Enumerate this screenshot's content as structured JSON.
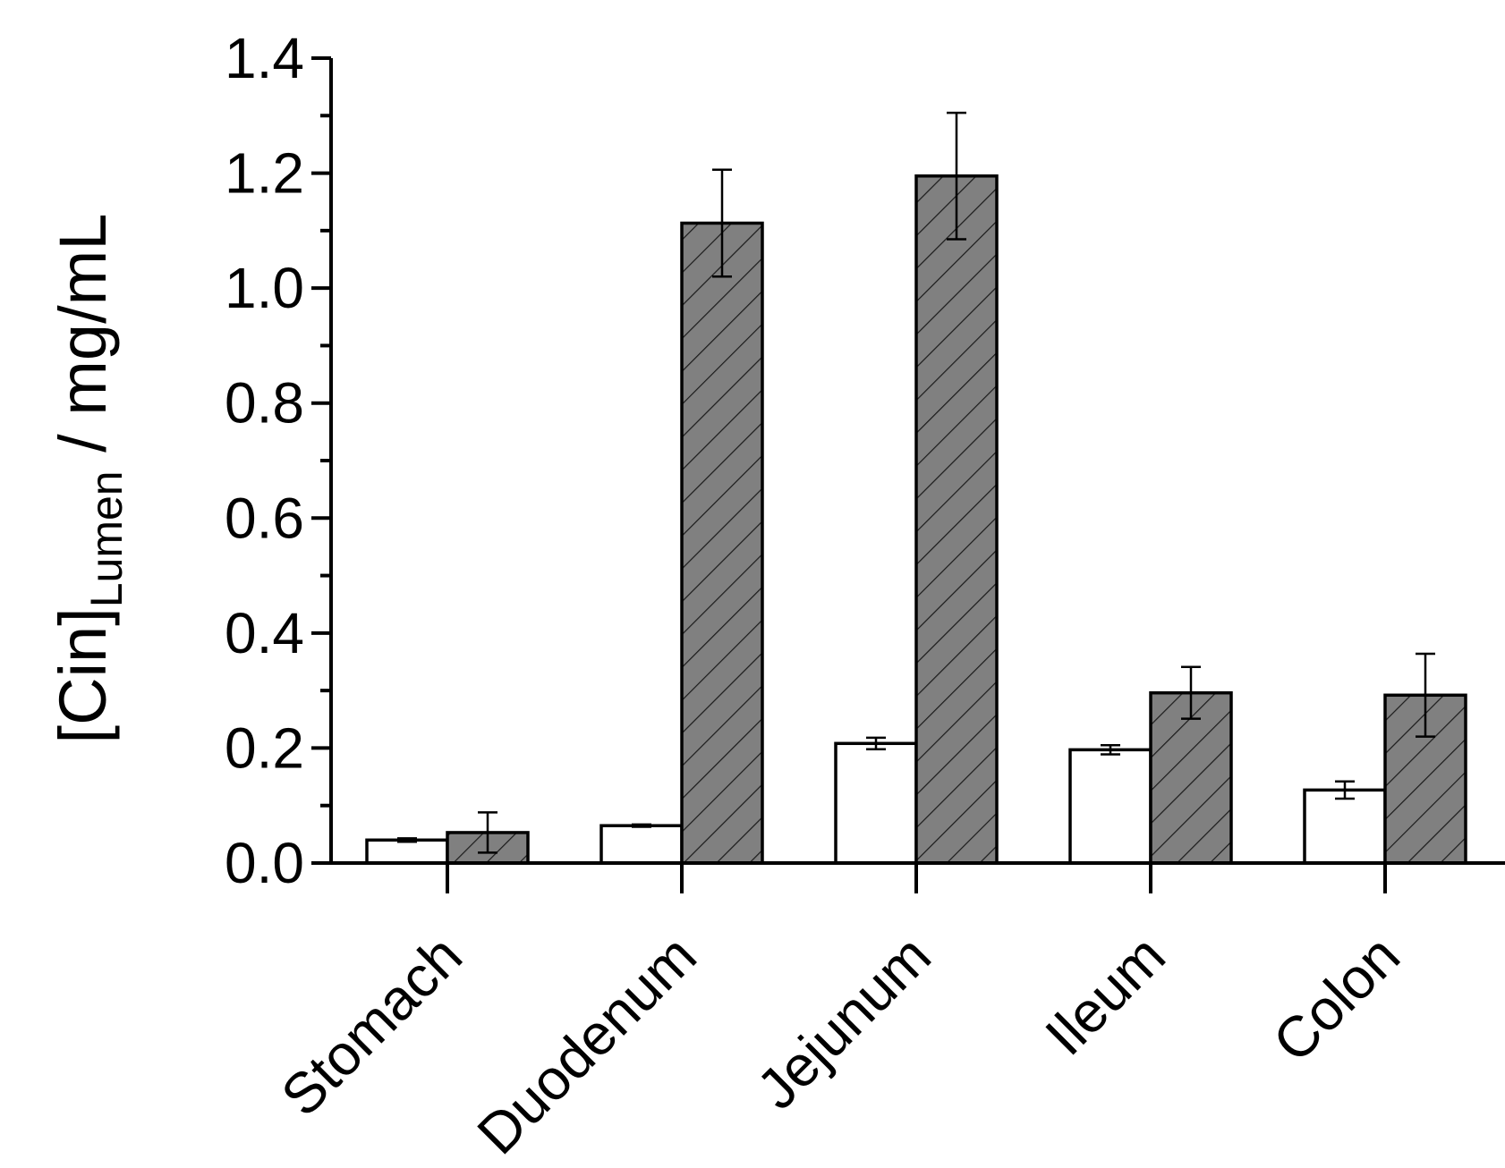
{
  "chart_data": {
    "type": "bar",
    "title": "",
    "xlabel": "",
    "ylabel": {
      "main": "[Cin]",
      "subscript": "Lumen",
      "unit": " / mg/mL"
    },
    "ylim": [
      0.0,
      1.4
    ],
    "yticks": [
      "0.0",
      "0.2",
      "0.4",
      "0.6",
      "0.8",
      "1.0",
      "1.2",
      "1.4"
    ],
    "grid": false,
    "legend": "none",
    "categories": [
      "Stomach",
      "Duodenum",
      "Jejunum",
      "Ileum",
      "Colon"
    ],
    "series": [
      {
        "fill": "#ffffff",
        "hatch": false,
        "values": [
          0.04,
          0.065,
          0.208,
          0.197,
          0.127
        ],
        "errors": [
          0.003,
          0.002,
          0.01,
          0.008,
          0.015
        ]
      },
      {
        "fill": "#808080",
        "hatch": true,
        "values": [
          0.053,
          1.113,
          1.195,
          0.296,
          0.292
        ],
        "errors": [
          0.035,
          0.093,
          0.11,
          0.045,
          0.072
        ]
      }
    ]
  }
}
